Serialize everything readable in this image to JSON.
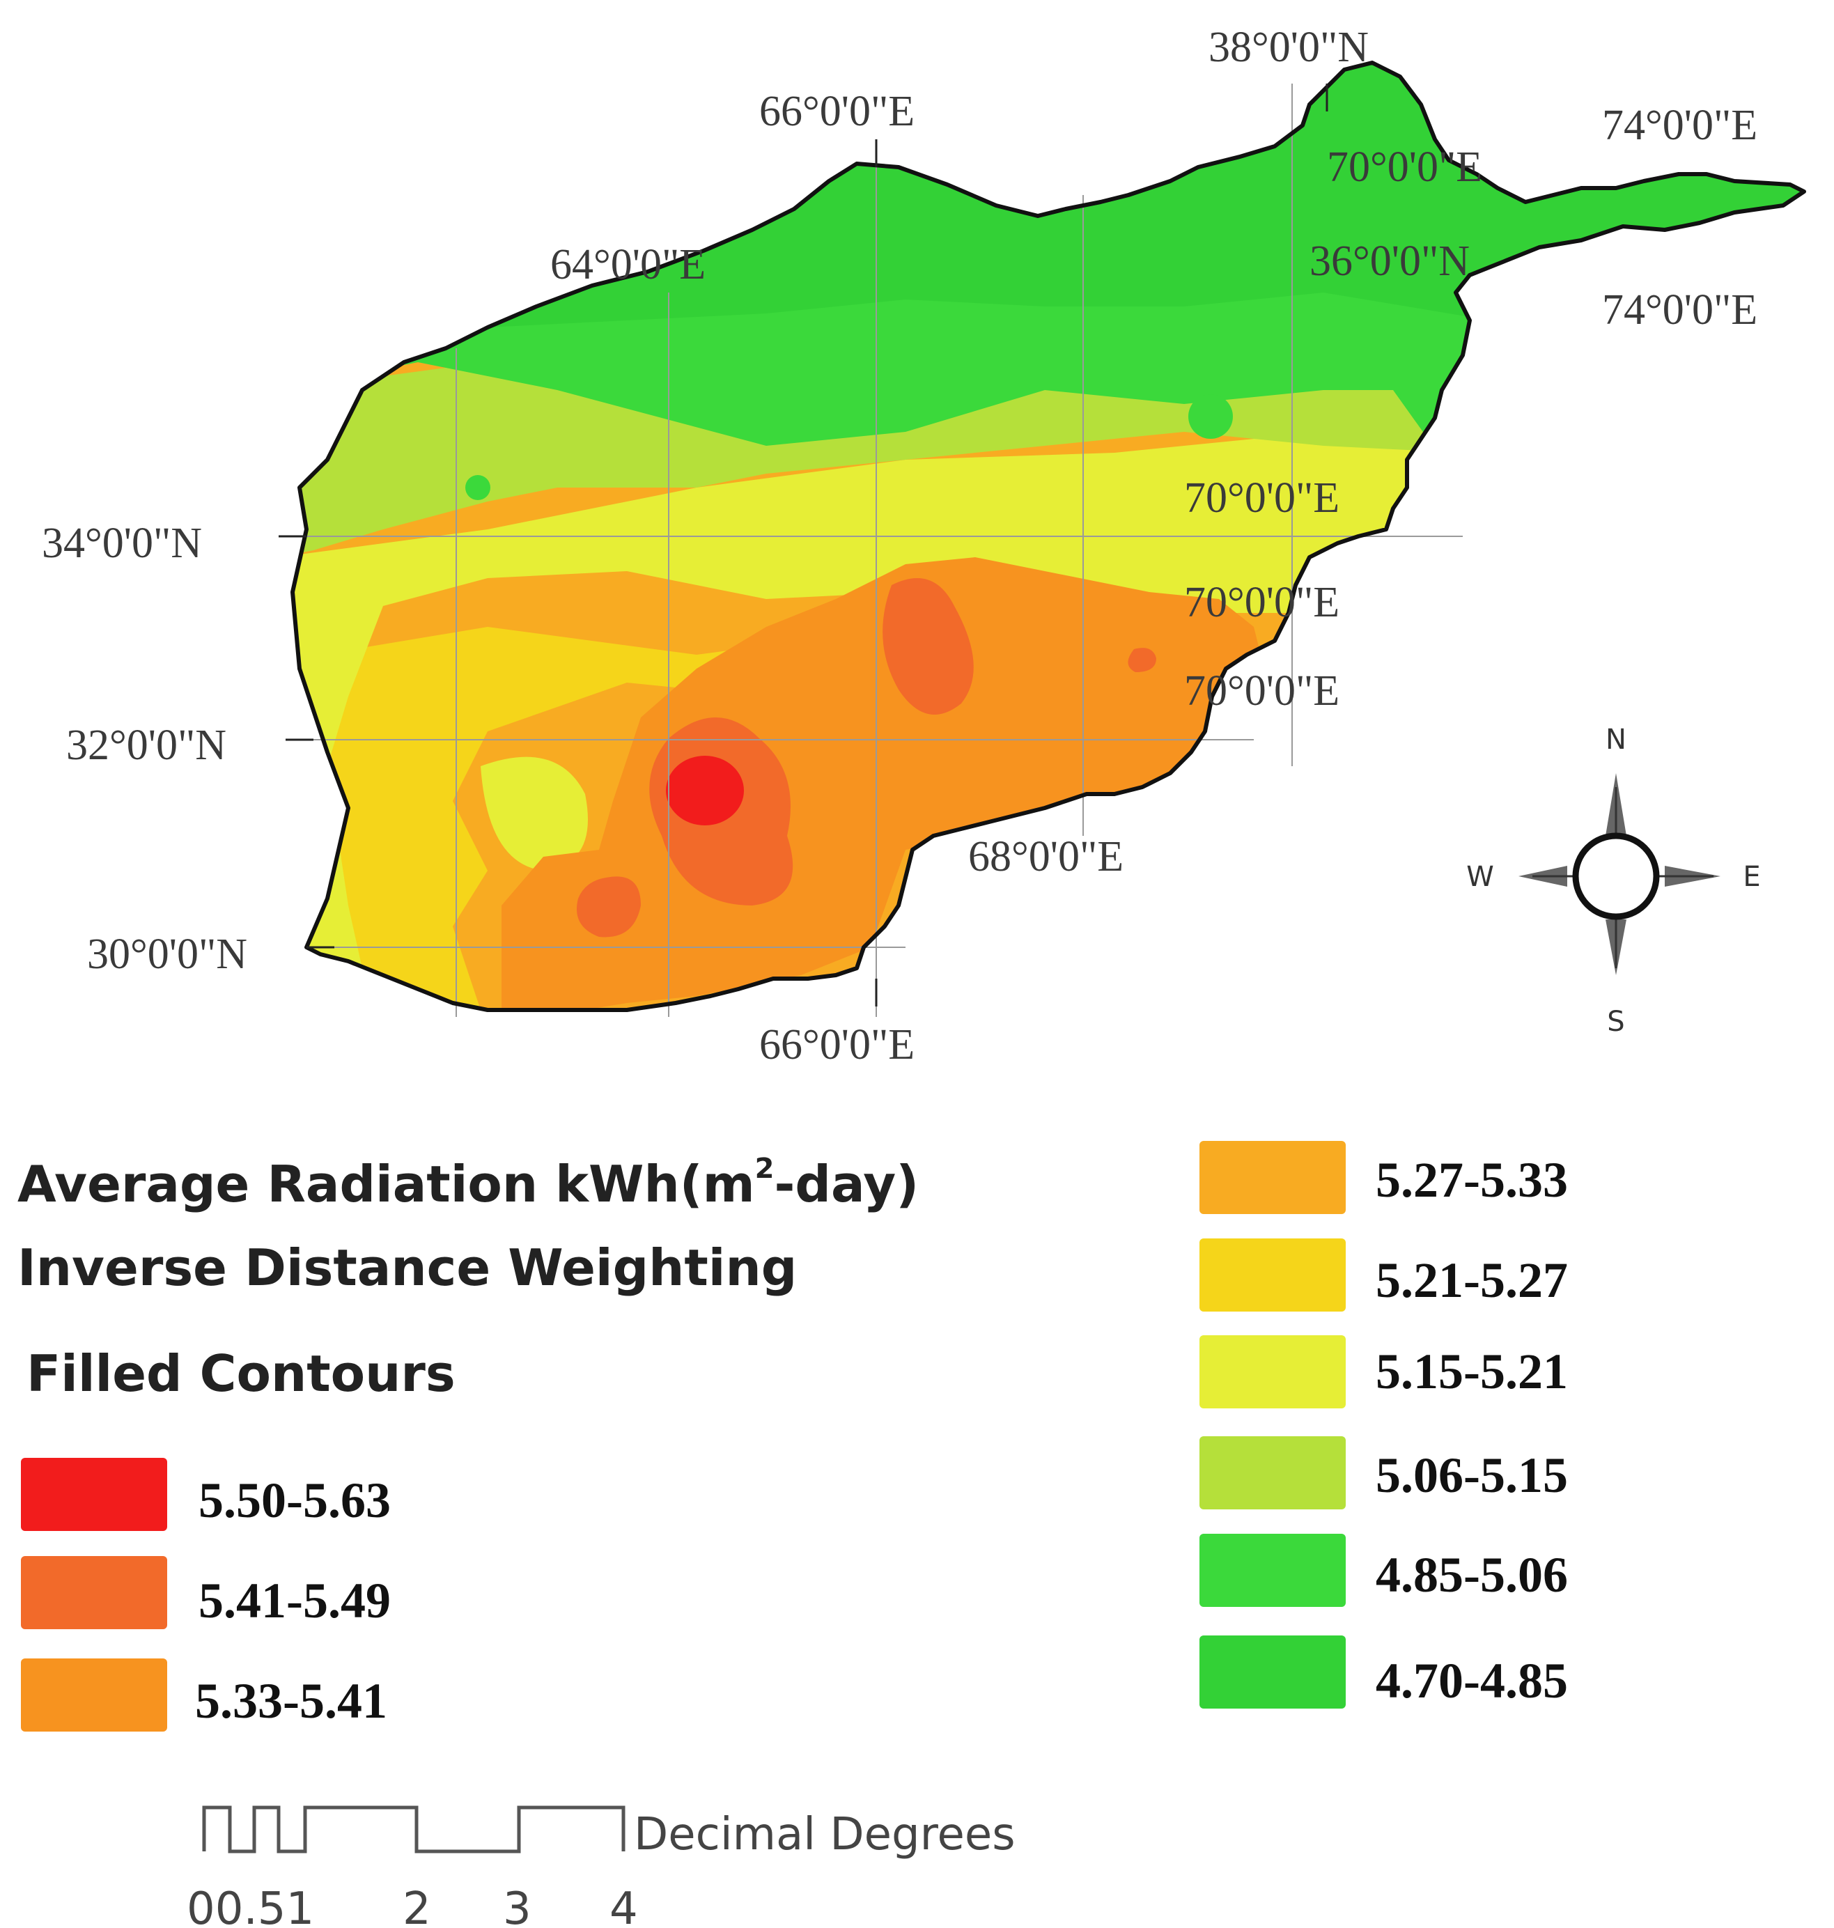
{
  "map": {
    "coordinate_labels": {
      "top_lat": "38°0'0\"N",
      "top_lon_66": "66°0'0\"E",
      "top_lon_74": "74°0'0\"E",
      "mid_lon_70": "70°0'0\"E",
      "mid_lon_64": "64°0'0\"E",
      "mid_lat_36": "36°0'0\"N",
      "mid_lon_74": "74°0'0\"E",
      "lat_34": "34°0'0\"N",
      "east_lon_70_a": "70°0'0\"E",
      "east_lon_70_b": "70°0'0\"E",
      "east_lon_70_c": "70°0'0\"E",
      "lat_32": "32°0'0\"N",
      "lon_68": "68°0'0\"E",
      "lat_30": "30°0'0\"N",
      "bottom_lon_66": "66°0'0\"E"
    },
    "colors": {
      "c550": "#f21c1c",
      "c541": "#f26a2a",
      "c533": "#f7931f",
      "c527": "#f8ab22",
      "c521": "#f5d51a",
      "c515": "#e6ee36",
      "c506": "#b5e03a",
      "c485": "#3bd93b",
      "c470": "#33d136"
    },
    "compass": {
      "north": "N",
      "south": "S",
      "east": "E",
      "west": "W"
    }
  },
  "legend": {
    "title_line1": "Average Radiation  kWh(m",
    "title_sup": "2",
    "title_line1_end": "-day)",
    "title_line2": "Inverse Distance Weighting",
    "title_line3": "Filled Contours",
    "items": [
      {
        "label": "5.50-5.63",
        "color": "#f21c1c"
      },
      {
        "label": "5.41-5.49",
        "color": "#f26a2a"
      },
      {
        "label": "5.33-5.41",
        "color": "#f7931f"
      },
      {
        "label": "5.27-5.33",
        "color": "#f8ab22"
      },
      {
        "label": "5.21-5.27",
        "color": "#f5d51a"
      },
      {
        "label": "5.15-5.21",
        "color": "#e6ee36"
      },
      {
        "label": "5.06-5.15",
        "color": "#b5e03a"
      },
      {
        "label": "4.85-5.06",
        "color": "#3bd93b"
      },
      {
        "label": "4.70-4.85",
        "color": "#33d136"
      }
    ]
  },
  "scale_bar": {
    "unit": "Decimal Degrees",
    "ticks": [
      "0",
      "0.5",
      "1",
      "2",
      "3",
      "4"
    ],
    "tick_text": "00.51"
  }
}
